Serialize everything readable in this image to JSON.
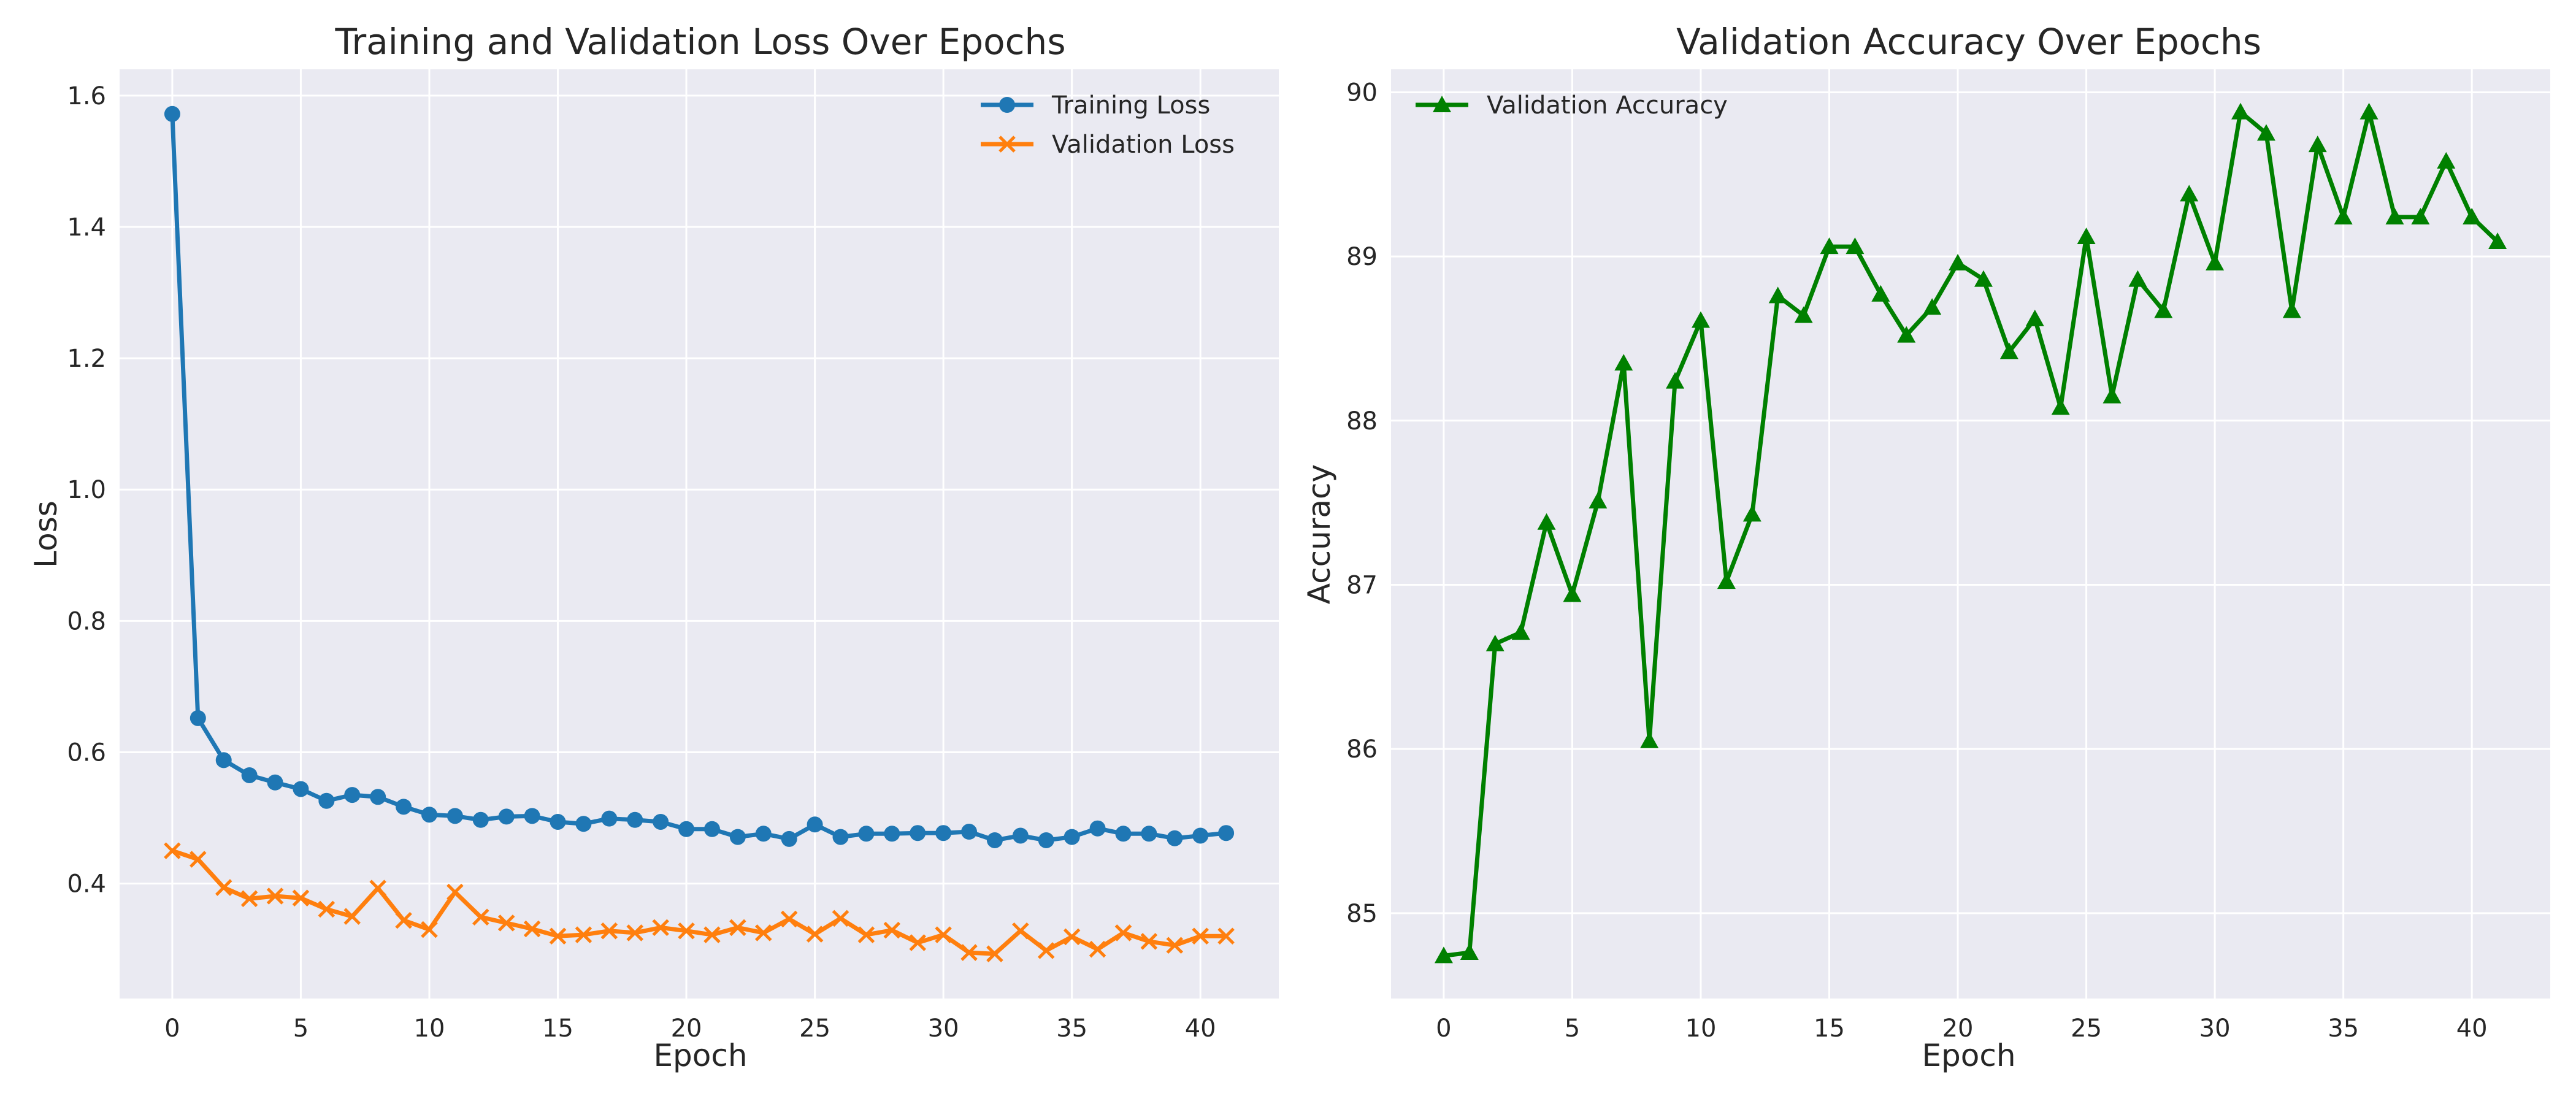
{
  "chart_data": [
    {
      "type": "line",
      "title": "Training and Validation Loss Over Epochs",
      "xlabel": "Epoch",
      "ylabel": "Loss",
      "xlim": [
        -2.05,
        43.05
      ],
      "ylim": [
        0.225,
        1.64
      ],
      "xticks": [
        0,
        5,
        10,
        15,
        20,
        25,
        30,
        35,
        40
      ],
      "xtick_labels": [
        "0",
        "5",
        "10",
        "15",
        "20",
        "25",
        "30",
        "35",
        "40"
      ],
      "yticks": [
        0.4,
        0.6,
        0.8,
        1.0,
        1.2,
        1.4,
        1.6
      ],
      "ytick_labels": [
        "0.4",
        "0.6",
        "0.8",
        "1.0",
        "1.2",
        "1.4",
        "1.6"
      ],
      "grid": true,
      "legend_position": "top-right",
      "x": [
        0,
        1,
        2,
        3,
        4,
        5,
        6,
        7,
        8,
        9,
        10,
        11,
        12,
        13,
        14,
        15,
        16,
        17,
        18,
        19,
        20,
        21,
        22,
        23,
        24,
        25,
        26,
        27,
        28,
        29,
        30,
        31,
        32,
        33,
        34,
        35,
        36,
        37,
        38,
        39,
        40,
        41
      ],
      "series": [
        {
          "name": "Training Loss",
          "color": "#1f77b4",
          "marker": "circle",
          "values": [
            1.572,
            0.652,
            0.588,
            0.565,
            0.554,
            0.544,
            0.526,
            0.535,
            0.532,
            0.517,
            0.505,
            0.503,
            0.497,
            0.502,
            0.503,
            0.494,
            0.491,
            0.499,
            0.497,
            0.494,
            0.483,
            0.483,
            0.471,
            0.476,
            0.468,
            0.49,
            0.471,
            0.476,
            0.476,
            0.477,
            0.477,
            0.479,
            0.466,
            0.473,
            0.466,
            0.471,
            0.484,
            0.476,
            0.476,
            0.469,
            0.473,
            0.477
          ]
        },
        {
          "name": "Validation Loss",
          "color": "#ff7f0e",
          "marker": "x",
          "values": [
            0.45,
            0.437,
            0.394,
            0.377,
            0.381,
            0.378,
            0.361,
            0.35,
            0.393,
            0.344,
            0.33,
            0.387,
            0.349,
            0.34,
            0.331,
            0.32,
            0.322,
            0.328,
            0.325,
            0.333,
            0.328,
            0.322,
            0.333,
            0.325,
            0.346,
            0.323,
            0.347,
            0.322,
            0.329,
            0.31,
            0.322,
            0.295,
            0.293,
            0.328,
            0.298,
            0.319,
            0.3,
            0.325,
            0.312,
            0.306,
            0.32,
            0.32
          ]
        }
      ]
    },
    {
      "type": "line",
      "title": "Validation Accuracy Over Epochs",
      "xlabel": "Epoch",
      "ylabel": "Accuracy",
      "xlim": [
        -2.05,
        43.05
      ],
      "ylim": [
        84.48,
        90.14
      ],
      "xticks": [
        0,
        5,
        10,
        15,
        20,
        25,
        30,
        35,
        40
      ],
      "xtick_labels": [
        "0",
        "5",
        "10",
        "15",
        "20",
        "25",
        "30",
        "35",
        "40"
      ],
      "yticks": [
        85,
        86,
        87,
        88,
        89,
        90
      ],
      "ytick_labels": [
        "85",
        "86",
        "87",
        "88",
        "89",
        "90"
      ],
      "grid": true,
      "legend_position": "top-left",
      "x": [
        0,
        1,
        2,
        3,
        4,
        5,
        6,
        7,
        8,
        9,
        10,
        11,
        12,
        13,
        14,
        15,
        16,
        17,
        18,
        19,
        20,
        21,
        22,
        23,
        24,
        25,
        26,
        27,
        28,
        29,
        30,
        31,
        32,
        33,
        34,
        35,
        36,
        37,
        38,
        39,
        40,
        41
      ],
      "series": [
        {
          "name": "Validation Accuracy",
          "color": "#008000",
          "marker": "triangle",
          "values": [
            84.74,
            84.76,
            86.64,
            86.71,
            87.38,
            86.94,
            87.51,
            88.35,
            86.05,
            88.24,
            88.61,
            87.02,
            87.43,
            88.76,
            88.64,
            89.06,
            89.06,
            88.77,
            88.52,
            88.69,
            88.96,
            88.86,
            88.42,
            88.62,
            88.08,
            89.12,
            88.15,
            88.86,
            88.67,
            89.38,
            88.96,
            89.88,
            89.75,
            88.67,
            89.68,
            89.24,
            89.88,
            89.24,
            89.24,
            89.58,
            89.24,
            89.09
          ]
        }
      ]
    }
  ]
}
